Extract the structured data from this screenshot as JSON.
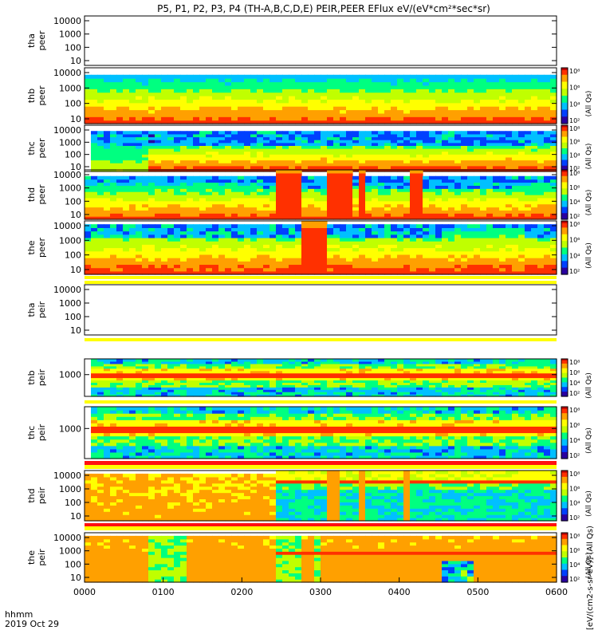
{
  "chart_data": {
    "type": "heatmap",
    "title": "P5, P1, P2, P3, P4 (TH-A,B,C,D,E) PEIR,PEER EFlux eV/(eV*cm²*sec*sr)",
    "x_label_line1": "hhmm",
    "x_label_line2": "2019 Oct 29",
    "x_ticks": [
      "0000",
      "0100",
      "0200",
      "0300",
      "0400",
      "0500",
      "0600"
    ],
    "x_range_hours": [
      0,
      6
    ],
    "colorbar_ticks": [
      "10⁸",
      "10⁶",
      "10⁴",
      "10²"
    ],
    "colorbar_label_short": "(All Qs)",
    "colorbar_label_full": "[eV/(cm2-s-sr-eV)] (All Qs)",
    "colorscale": [
      "#2a00a0",
      "#0040ff",
      "#00c0ff",
      "#00ff80",
      "#c0ff00",
      "#ffff00",
      "#ffa000",
      "#ff3000",
      "#c00000"
    ],
    "panels": [
      {
        "probe": "tha",
        "species": "peer",
        "label1": "tha",
        "label2": "peer",
        "yticks": [
          "10000",
          "1000",
          "100",
          "10"
        ],
        "has_data": false,
        "mode": "empty"
      },
      {
        "probe": "thb",
        "species": "peer",
        "label1": "thb",
        "label2": "peer",
        "yticks": [
          "10000",
          "1000",
          "100",
          "10"
        ],
        "has_data": true,
        "mode": "e_flat"
      },
      {
        "probe": "thc",
        "species": "peer",
        "label1": "thc",
        "label2": "peer",
        "yticks": [
          "10000",
          "1000",
          "100",
          "10"
        ],
        "has_data": true,
        "mode": "e_thc"
      },
      {
        "probe": "thd",
        "species": "peer",
        "label1": "thd",
        "label2": "peer",
        "yticks": [
          "10000",
          "1000",
          "100",
          "10"
        ],
        "has_data": true,
        "mode": "e_thd"
      },
      {
        "probe": "the",
        "species": "peer",
        "label1": "the",
        "label2": "peer",
        "yticks": [
          "10000",
          "1000",
          "100",
          "10"
        ],
        "has_data": true,
        "mode": "e_the"
      },
      {
        "probe": "tha",
        "species": "peir",
        "label1": "tha",
        "label2": "peir",
        "yticks": [
          "10000",
          "1000",
          "100",
          "10"
        ],
        "has_data": false,
        "mode": "empty"
      },
      {
        "probe": "thb",
        "species": "peir",
        "label1": "thb",
        "label2": "peir",
        "yticks": [
          "1000"
        ],
        "has_data": true,
        "mode": "i_band"
      },
      {
        "probe": "thc",
        "species": "peir",
        "label1": "thc",
        "label2": "peir",
        "yticks": [
          "1000"
        ],
        "has_data": true,
        "mode": "i_band2"
      },
      {
        "probe": "thd",
        "species": "peir",
        "label1": "thd",
        "label2": "peir",
        "yticks": [
          "10000",
          "1000",
          "100",
          "10"
        ],
        "has_data": true,
        "mode": "i_thd"
      },
      {
        "probe": "the",
        "species": "peir",
        "label1": "the",
        "label2": "peir",
        "yticks": [
          "10000",
          "1000",
          "100",
          "10"
        ],
        "has_data": true,
        "mode": "i_the"
      }
    ]
  }
}
